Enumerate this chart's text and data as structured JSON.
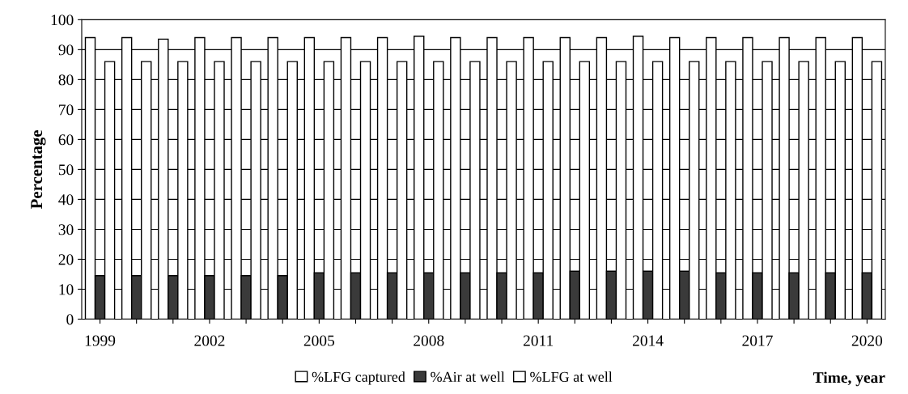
{
  "chart_data": {
    "type": "bar",
    "xlabel": "Time, year",
    "ylabel": "Percentage",
    "categories": [
      "1999",
      null,
      null,
      "2002",
      null,
      null,
      "2005",
      null,
      null,
      "2008",
      null,
      null,
      "2011",
      null,
      null,
      "2014",
      null,
      null,
      "2017",
      null,
      null,
      "2020"
    ],
    "series": [
      {
        "name": "%LFG captured",
        "color": "#ffffff",
        "values": [
          94,
          94,
          93.5,
          94,
          94,
          94,
          94,
          94,
          94,
          94.5,
          94,
          94,
          94,
          94,
          94,
          94.5,
          94,
          94,
          94,
          94,
          94,
          94
        ]
      },
      {
        "name": "%Air at well",
        "color": "#3a3a3a",
        "values": [
          14.5,
          14.5,
          14.5,
          14.5,
          14.5,
          14.5,
          15.5,
          15.5,
          15.5,
          15.5,
          15.5,
          15.5,
          15.5,
          16,
          16,
          16,
          16,
          15.5,
          15.5,
          15.5,
          15.5,
          15.5
        ]
      },
      {
        "name": "%LFG at well",
        "color": "#ffffff",
        "values": [
          86,
          86,
          86,
          86,
          86,
          86,
          86,
          86,
          86,
          86,
          86,
          86,
          86,
          86,
          86,
          86,
          86,
          86,
          86,
          86,
          86,
          86
        ]
      }
    ],
    "ylim": [
      0,
      100
    ],
    "yticks": [
      0,
      10,
      20,
      30,
      40,
      50,
      60,
      70,
      80,
      90,
      100
    ],
    "grid": "y",
    "legend": "bottom"
  }
}
